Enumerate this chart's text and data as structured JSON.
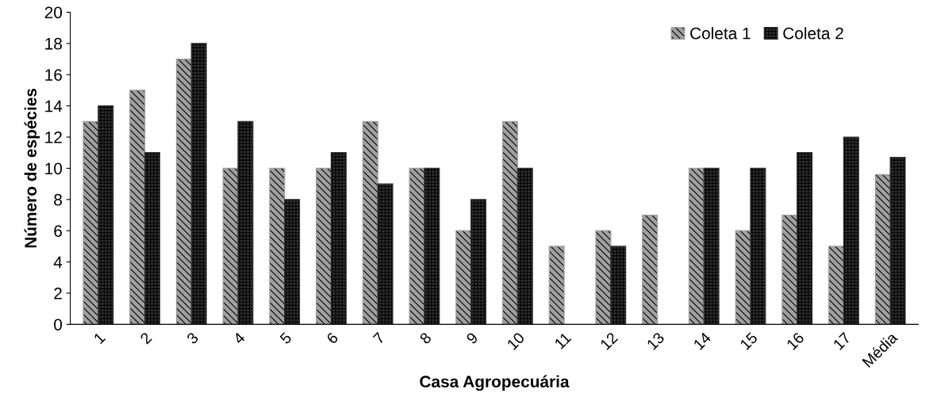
{
  "chart_data": {
    "type": "bar",
    "xlabel": "Casa Agropecuária",
    "ylabel": "Número de espécies",
    "categories": [
      "1",
      "2",
      "3",
      "4",
      "5",
      "6",
      "7",
      "8",
      "9",
      "10",
      "11",
      "12",
      "13",
      "14",
      "15",
      "16",
      "17",
      "Média"
    ],
    "series": [
      {
        "name": "Coleta 1",
        "color": "#a0a0a0",
        "values": [
          13,
          15,
          17,
          10,
          10,
          10,
          13,
          10,
          6,
          13,
          5,
          6,
          7,
          10,
          6,
          7,
          5,
          9.6
        ]
      },
      {
        "name": "Coleta 2",
        "color": "#303030",
        "values": [
          14,
          11,
          18,
          13,
          8,
          11,
          9,
          10,
          8,
          10,
          null,
          5,
          null,
          10,
          10,
          11,
          12,
          10.7
        ]
      }
    ],
    "ylim": [
      0,
      20
    ],
    "yticks": [
      0,
      2,
      4,
      6,
      8,
      10,
      12,
      14,
      16,
      18,
      20
    ],
    "grid": false,
    "legend": "top right"
  }
}
